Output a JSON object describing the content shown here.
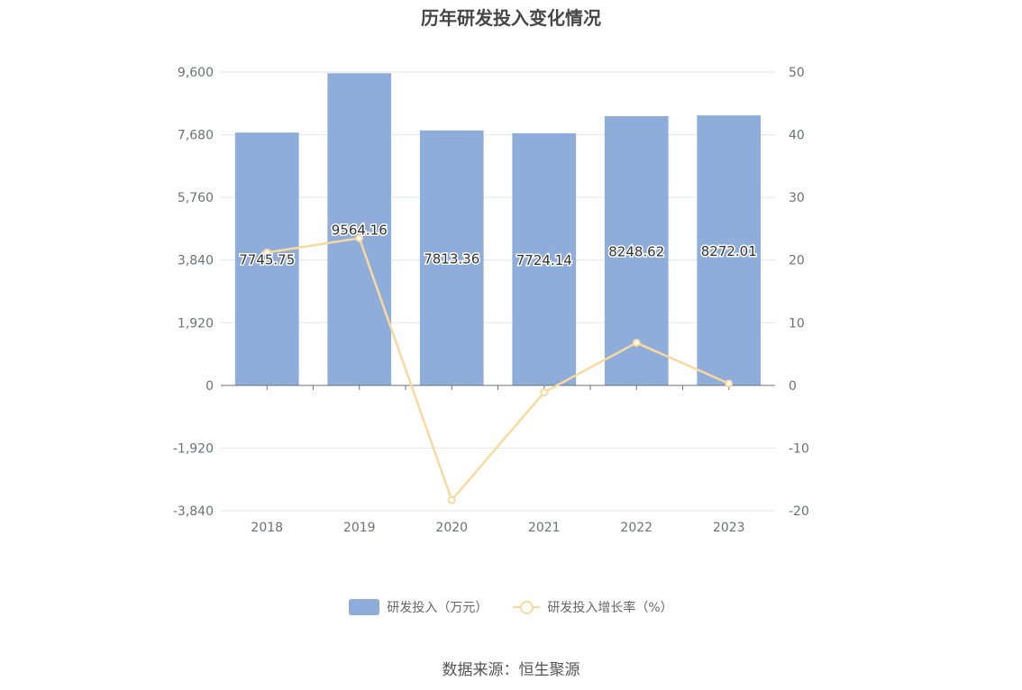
{
  "chart_data": {
    "type": "bar",
    "title": "历年研发投入变化情况",
    "categories": [
      "2018",
      "2019",
      "2020",
      "2021",
      "2022",
      "2023"
    ],
    "series": [
      {
        "name": "研发投入（万元）",
        "type": "bar",
        "axis": "left",
        "values": [
          7745.75,
          9564.16,
          7813.36,
          7724.14,
          8248.62,
          8272.01
        ],
        "labels": [
          "7745.75",
          "9564.16",
          "7813.36",
          "7724.14",
          "8248.62",
          "8272.01"
        ]
      },
      {
        "name": "研发投入增长率（%）",
        "type": "line",
        "axis": "right",
        "values": [
          21.2,
          23.5,
          -18.3,
          -1.1,
          6.8,
          0.3
        ]
      }
    ],
    "y_left": {
      "ticks": [
        9600,
        7680,
        5760,
        3840,
        1920,
        0,
        -1920,
        -3840
      ],
      "tick_labels": [
        "9,600",
        "7,680",
        "5,760",
        "3,840",
        "1,920",
        "0",
        "-1,920",
        "-3,840"
      ],
      "range": [
        -3840,
        9600
      ]
    },
    "y_right": {
      "ticks": [
        50,
        40,
        30,
        20,
        10,
        0,
        -10,
        -20
      ],
      "tick_labels": [
        "50",
        "40",
        "30",
        "20",
        "10",
        "0",
        "-10",
        "-20"
      ],
      "range": [
        -20,
        50
      ]
    },
    "grid": true,
    "legend_position": "bottom",
    "colors": {
      "bar": "#8eadda",
      "line": "#fbd89d"
    }
  },
  "source": "数据来源：恒生聚源"
}
